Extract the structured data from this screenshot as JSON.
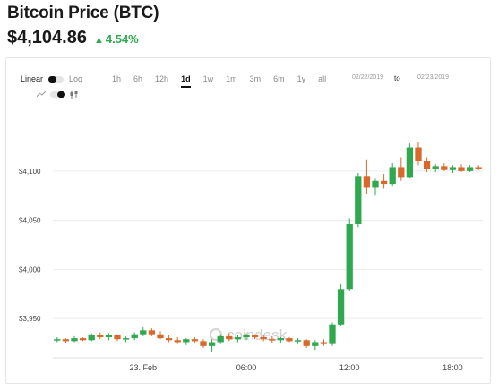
{
  "header": {
    "title": "Bitcoin Price (BTC)",
    "price": "$4,104.86",
    "change": "4.54%",
    "change_color": "#2fa84f"
  },
  "controls": {
    "scale_linear": "Linear",
    "scale_log": "Log",
    "ranges": [
      "1h",
      "6h",
      "12h",
      "1d",
      "1w",
      "1m",
      "3m",
      "6m",
      "1y",
      "all"
    ],
    "active_range": "1d",
    "date_from": "02/22/2019",
    "date_sep": "to",
    "date_to": "02/23/2019",
    "type_icons": [
      "line-chart-icon",
      "toggle-switch-icon",
      "candlestick-icon"
    ]
  },
  "watermark": "coindesk",
  "colors": {
    "up": "#2fa84f",
    "down": "#d9682b",
    "grid": "#ececec"
  },
  "chart_data": {
    "type": "candlestick",
    "ylim": [
      3910,
      4140
    ],
    "yticks": [
      {
        "value": 3950,
        "label": "$3,950"
      },
      {
        "value": 4000,
        "label": "$4,000"
      },
      {
        "value": 4050,
        "label": "$4,050"
      },
      {
        "value": 4100,
        "label": "$4,100"
      }
    ],
    "xticks": [
      {
        "index": 10,
        "label": "23. Feb"
      },
      {
        "index": 22,
        "label": "06:00"
      },
      {
        "index": 34,
        "label": "12:00"
      },
      {
        "index": 46,
        "label": "18:00"
      }
    ],
    "ohlc": [
      [
        3928,
        3931,
        3926,
        3929
      ],
      [
        3929,
        3930,
        3925,
        3927
      ],
      [
        3927,
        3932,
        3926,
        3930
      ],
      [
        3930,
        3931,
        3927,
        3928
      ],
      [
        3928,
        3935,
        3927,
        3933
      ],
      [
        3933,
        3936,
        3929,
        3931
      ],
      [
        3931,
        3935,
        3928,
        3933
      ],
      [
        3933,
        3934,
        3927,
        3929
      ],
      [
        3929,
        3932,
        3926,
        3930
      ],
      [
        3930,
        3936,
        3928,
        3934
      ],
      [
        3934,
        3941,
        3932,
        3938
      ],
      [
        3938,
        3940,
        3932,
        3934
      ],
      [
        3934,
        3937,
        3929,
        3930
      ],
      [
        3930,
        3933,
        3926,
        3928
      ],
      [
        3928,
        3931,
        3924,
        3926
      ],
      [
        3926,
        3930,
        3923,
        3929
      ],
      [
        3929,
        3931,
        3925,
        3927
      ],
      [
        3927,
        3929,
        3920,
        3922
      ],
      [
        3922,
        3929,
        3916,
        3926
      ],
      [
        3926,
        3934,
        3924,
        3932
      ],
      [
        3932,
        3935,
        3927,
        3929
      ],
      [
        3929,
        3933,
        3926,
        3931
      ],
      [
        3931,
        3935,
        3928,
        3933
      ],
      [
        3933,
        3934,
        3929,
        3931
      ],
      [
        3931,
        3933,
        3927,
        3929
      ],
      [
        3929,
        3932,
        3925,
        3928
      ],
      [
        3928,
        3931,
        3925,
        3930
      ],
      [
        3930,
        3931,
        3926,
        3927
      ],
      [
        3927,
        3930,
        3924,
        3928
      ],
      [
        3928,
        3929,
        3920,
        3922
      ],
      [
        3922,
        3928,
        3918,
        3926
      ],
      [
        3926,
        3929,
        3922,
        3924
      ],
      [
        3924,
        3946,
        3922,
        3944
      ],
      [
        3944,
        3985,
        3942,
        3980
      ],
      [
        3980,
        4052,
        3978,
        4046
      ],
      [
        4046,
        4098,
        4043,
        4095
      ],
      [
        4095,
        4112,
        4077,
        4083
      ],
      [
        4083,
        4092,
        4076,
        4090
      ],
      [
        4090,
        4097,
        4082,
        4087
      ],
      [
        4087,
        4108,
        4085,
        4104
      ],
      [
        4104,
        4114,
        4090,
        4094
      ],
      [
        4094,
        4128,
        4093,
        4124
      ],
      [
        4124,
        4130,
        4106,
        4110
      ],
      [
        4110,
        4114,
        4099,
        4102
      ],
      [
        4102,
        4107,
        4099,
        4105
      ],
      [
        4105,
        4108,
        4100,
        4101
      ],
      [
        4101,
        4106,
        4098,
        4104
      ],
      [
        4104,
        4107,
        4099,
        4100
      ],
      [
        4100,
        4106,
        4099,
        4104
      ],
      [
        4104,
        4106,
        4101,
        4103
      ]
    ]
  }
}
